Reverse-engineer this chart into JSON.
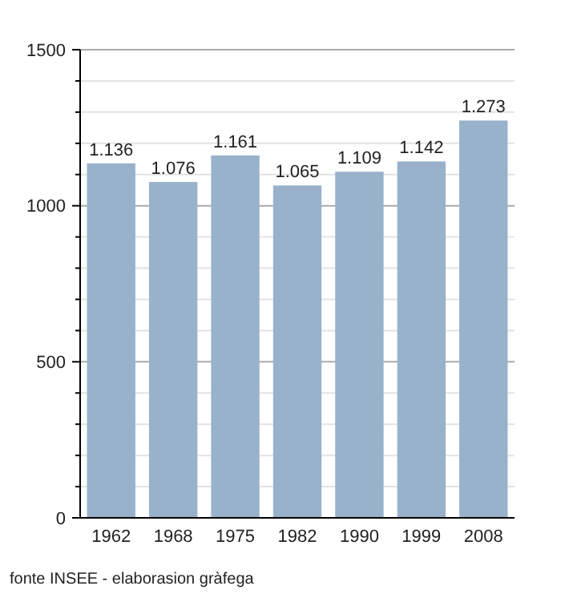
{
  "chart_data": {
    "type": "bar",
    "categories": [
      "1962",
      "1968",
      "1975",
      "1982",
      "1990",
      "1999",
      "2008"
    ],
    "values": [
      1136,
      1076,
      1161,
      1065,
      1109,
      1142,
      1273
    ],
    "value_labels": [
      "1.136",
      "1.076",
      "1.161",
      "1.065",
      "1.109",
      "1.142",
      "1.273"
    ],
    "color": "#98b2cc",
    "ylim": [
      0,
      1500
    ],
    "yticks": [
      0,
      {
        "value": 100,
        "label": null
      },
      {
        "value": 200,
        "label": null
      },
      {
        "value": 300,
        "label": null
      },
      {
        "value": 400,
        "label": null
      },
      500,
      {
        "value": 600,
        "label": null
      },
      {
        "value": 700,
        "label": null
      },
      {
        "value": 800,
        "label": null
      },
      {
        "value": 900,
        "label": null
      },
      1000,
      {
        "value": 1100,
        "label": null
      },
      {
        "value": 1200,
        "label": null
      },
      {
        "value": 1300,
        "label": null
      },
      {
        "value": 1400,
        "label": null
      },
      1500
    ],
    "grid": "y",
    "annotations": [
      "fonte INSEE - elaborasion gràfega"
    ]
  }
}
